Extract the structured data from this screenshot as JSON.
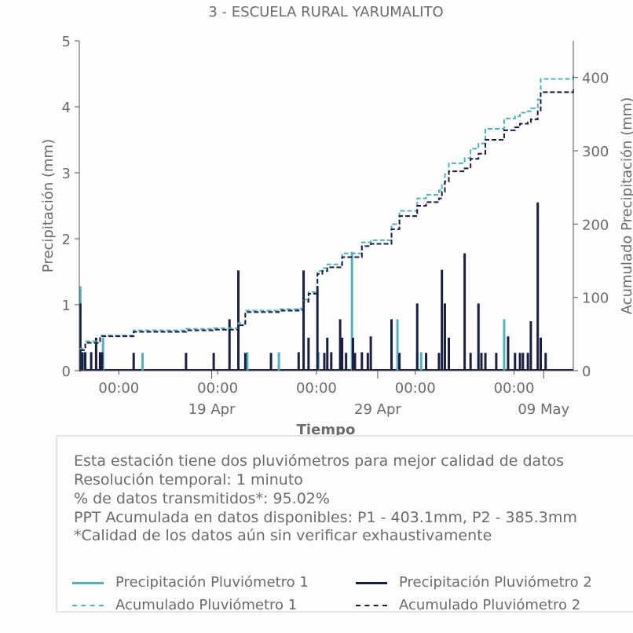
{
  "chart_data": {
    "type": "line",
    "title": "3 - ESCUELA RURAL YARUMALITO",
    "xlabel": "Tiempo",
    "ylabel_left": "Precipitación (mm)",
    "ylabel_right": "Acumulado Precipitación (mm)",
    "ylim_left": [
      0,
      5
    ],
    "ylim_right": [
      0,
      450
    ],
    "yticks_left": [
      "0",
      "1",
      "2",
      "3",
      "4",
      "5"
    ],
    "yticks_right": [
      "0",
      "100",
      "200",
      "300",
      "400"
    ],
    "xticks_minor": [
      "00:00",
      "00:00",
      "00:00",
      "00:00",
      "00:00"
    ],
    "xticks_major": [
      "19 Apr",
      "29 Apr",
      "09 May"
    ],
    "x_range_days": [
      0,
      25
    ],
    "colors": {
      "p1": "#4fb3bf",
      "p2": "#1b1f3f"
    },
    "series": [
      {
        "name": "Precipitación Pluviómetro 1",
        "style": "bar",
        "x_days": [
          0.05,
          0.25,
          1.2,
          3.2,
          8.5,
          10.1,
          12.1,
          13.8,
          16.1,
          17.1,
          17.3,
          20.2,
          21.5,
          22.7
        ],
        "values": [
          1.28,
          0.28,
          0.5,
          0.27,
          0.28,
          0.28,
          0.28,
          1.8,
          0.78,
          0.28,
          0.28,
          1.0,
          0.78,
          0.27
        ]
      },
      {
        "name": "Precipitación Pluviómetro 2",
        "style": "bar",
        "x_days": [
          0.05,
          0.15,
          0.3,
          0.6,
          0.85,
          1.05,
          1.15,
          2.75,
          5.4,
          6.8,
          7.6,
          8.05,
          8.4,
          9.7,
          11.1,
          11.35,
          11.6,
          12.05,
          12.4,
          12.55,
          12.75,
          13.2,
          13.3,
          13.5,
          13.85,
          13.95,
          14.3,
          14.6,
          14.75,
          15.8,
          16.2,
          17.1,
          17.55,
          18.2,
          18.35,
          18.5,
          18.7,
          19.5,
          19.8,
          20.2,
          20.35,
          20.55,
          21.1,
          21.7,
          22.05,
          22.3,
          22.45,
          22.7,
          22.85,
          23.2,
          23.35,
          23.6
        ],
        "values": [
          1.02,
          0.28,
          0.28,
          0.28,
          0.5,
          0.28,
          0.28,
          0.27,
          0.27,
          0.27,
          0.78,
          1.52,
          0.27,
          0.27,
          0.28,
          1.52,
          0.5,
          1.28,
          0.27,
          0.5,
          0.28,
          0.78,
          0.5,
          0.27,
          0.5,
          0.27,
          0.28,
          0.27,
          0.52,
          0.78,
          0.27,
          1.02,
          0.27,
          0.27,
          1.53,
          1.02,
          0.5,
          1.78,
          0.27,
          1.02,
          0.27,
          0.27,
          0.27,
          0.52,
          0.27,
          0.27,
          0.27,
          0.27,
          0.75,
          2.55,
          0.5,
          0.27
        ]
      },
      {
        "name": "Acumulado Pluviómetro 1",
        "style": "dashed",
        "x_days": [
          0,
          0.05,
          0.3,
          1.05,
          2.75,
          5.4,
          6.8,
          8.05,
          8.4,
          10.1,
          11.1,
          11.35,
          11.6,
          12.05,
          12.3,
          12.55,
          13.3,
          14.3,
          14.75,
          15.8,
          16.2,
          17.1,
          17.55,
          18.2,
          18.35,
          18.5,
          18.7,
          19.5,
          19.8,
          20.2,
          20.55,
          21.5,
          22.05,
          22.3,
          22.7,
          22.85,
          23.2,
          23.35,
          25
        ],
        "values": [
          0,
          30,
          40,
          48,
          55,
          57,
          58,
          65,
          82,
          84,
          85,
          97,
          107,
          136,
          140,
          145,
          160,
          175,
          178,
          200,
          218,
          235,
          240,
          246,
          255,
          268,
          283,
          290,
          303,
          310,
          330,
          344,
          347,
          352,
          354,
          358,
          370,
          398,
          403
        ]
      },
      {
        "name": "Acumulado Pluviómetro 2",
        "style": "dashed",
        "x_days": [
          0,
          0.05,
          0.3,
          1.05,
          2.75,
          5.4,
          6.8,
          8.05,
          8.4,
          10.1,
          11.1,
          11.35,
          11.6,
          12.05,
          12.3,
          12.55,
          13.3,
          14.3,
          14.75,
          15.8,
          16.2,
          17.1,
          17.55,
          18.2,
          18.35,
          18.5,
          18.7,
          19.5,
          19.8,
          20.2,
          20.55,
          21.5,
          22.05,
          22.3,
          22.7,
          22.85,
          23.2,
          23.35,
          25
        ],
        "values": [
          0,
          28,
          38,
          47,
          53,
          55,
          56,
          62,
          80,
          82,
          83,
          94,
          105,
          132,
          136,
          141,
          155,
          170,
          173,
          193,
          211,
          225,
          230,
          235,
          244,
          258,
          272,
          276,
          289,
          296,
          315,
          328,
          332,
          337,
          339,
          343,
          355,
          380,
          385.3
        ]
      }
    ]
  },
  "info": {
    "line1": "Esta estación tiene dos pluviómetros para mejor calidad de datos",
    "line2": "Resolución temporal: 1 minuto",
    "line3": "% de datos transmitidos*: 95.02%",
    "line4": "PPT Acumulada en datos disponibles: P1 - 403.1mm, P2 - 385.3mm",
    "line5": "*Calidad de los datos aún sin verificar exhaustivamente"
  },
  "legend": {
    "p1_precip": "Precipitación Pluviómetro 1",
    "p2_precip": "Precipitación Pluviómetro 2",
    "p1_acum": "Acumulado Pluviómetro 1",
    "p2_acum": "Acumulado Pluviómetro 2"
  }
}
